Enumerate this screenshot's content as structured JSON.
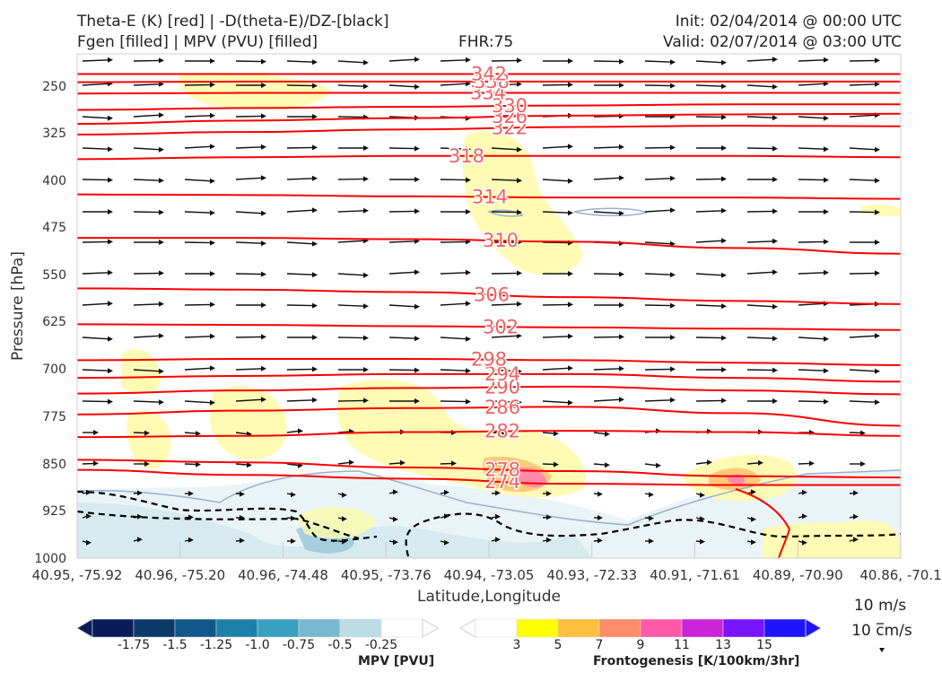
{
  "header": {
    "title_left_1": "Theta-E (K) [red] | -D(theta-E)/DZ-[black]",
    "title_left_2": "Fgen [filled] | MPV (PVU) [filled]",
    "fhr": "FHR:75",
    "init": "Init: 02/04/2014 @ 00:00 UTC",
    "valid": "Valid: 02/07/2014 @ 03:00 UTC"
  },
  "colors": {
    "theta_e": "#ff0000",
    "dthetae_dz": "#000000",
    "mpv_neg_outline": "#9ab0d0",
    "fgen_scale": [
      "#ffffff",
      "#ffff00",
      "#ffc040",
      "#ff8c6a",
      "#ff5aa8",
      "#c826d8",
      "#7814ff",
      "#1e14ff"
    ],
    "mpv_scale": [
      "#081d58",
      "#0b3a6a",
      "#10588a",
      "#1e80a8",
      "#3aa0c0",
      "#7ab8d0",
      "#bcdce6",
      "#ffffff"
    ]
  },
  "chart_data": {
    "type": "cross-section",
    "ylabel": "Pressure [hPa]",
    "xlabel": "Latitude,Longitude",
    "y_scale": "linear, inverted",
    "ylim": [
      1000,
      200
    ],
    "yticks": [
      "250",
      "325",
      "400",
      "475",
      "550",
      "625",
      "700",
      "775",
      "850",
      "925",
      "1000"
    ],
    "xticks": [
      "40.95, -75.92",
      "40.96, -75.20",
      "40.96, -74.48",
      "40.95, -73.76",
      "40.94, -73.05",
      "40.93, -72.33",
      "40.91, -71.61",
      "40.89, -70.90",
      "40.86, -70.1"
    ],
    "theta_e_labels": [
      "342",
      "338",
      "334",
      "330",
      "326",
      "322",
      "318",
      "314",
      "310",
      "306",
      "302",
      "298",
      "294",
      "290",
      "286",
      "282",
      "278",
      "274"
    ],
    "theta_e_contours": [
      {
        "value": 274,
        "p": [
          860,
          868,
          874,
          882,
          884,
          884
        ]
      },
      {
        "value": 278,
        "p": [
          844,
          848,
          856,
          862,
          870,
          872
        ]
      },
      {
        "value": 282,
        "p": [
          808,
          806,
          800,
          798,
          800,
          806
        ]
      },
      {
        "value": 286,
        "p": [
          772,
          766,
          762,
          760,
          770,
          790
        ]
      },
      {
        "value": 290,
        "p": [
          739,
          734,
          730,
          728,
          734,
          740
        ]
      },
      {
        "value": 294,
        "p": [
          714,
          711,
          708,
          708,
          714,
          720
        ]
      },
      {
        "value": 298,
        "p": [
          686,
          684,
          684,
          686,
          690,
          694
        ]
      },
      {
        "value": 302,
        "p": [
          629,
          630,
          632,
          634,
          636,
          638
        ]
      },
      {
        "value": 306,
        "p": [
          572,
          574,
          578,
          586,
          592,
          597
        ]
      },
      {
        "value": 310,
        "p": [
          492,
          492,
          494,
          498,
          508,
          517
        ]
      },
      {
        "value": 314,
        "p": [
          423,
          424,
          426,
          428,
          428,
          430
        ]
      },
      {
        "value": 318,
        "p": [
          367,
          364,
          362,
          362,
          362,
          364
        ]
      },
      {
        "value": 322,
        "p": [
          328,
          324,
          320,
          316,
          314,
          315
        ]
      },
      {
        "value": 326,
        "p": [
          311,
          306,
          302,
          298,
          296,
          295
        ]
      },
      {
        "value": 330,
        "p": [
          289,
          286,
          284,
          282,
          280,
          280
        ]
      },
      {
        "value": 334,
        "p": [
          263,
          262,
          262,
          262,
          262,
          262
        ]
      },
      {
        "value": 338,
        "p": [
          245,
          244,
          244,
          244,
          244,
          244
        ]
      },
      {
        "value": 342,
        "p": [
          232,
          232,
          232,
          232,
          232,
          232
        ]
      }
    ],
    "fgen_colorbar": {
      "label": "Frontogenesis [K/100km/3hr]",
      "ticks": [
        "3",
        "5",
        "7",
        "9",
        "11",
        "13",
        "15"
      ]
    },
    "mpv_colorbar": {
      "label": "MPV [PVU]",
      "ticks": [
        "-1.75",
        "-1.5",
        "-1.25",
        "-1.0",
        "-0.75",
        "-0.5",
        "-0.25"
      ]
    },
    "wind_reference": {
      "u": "10 m/s",
      "w": "10 cm/s"
    }
  }
}
